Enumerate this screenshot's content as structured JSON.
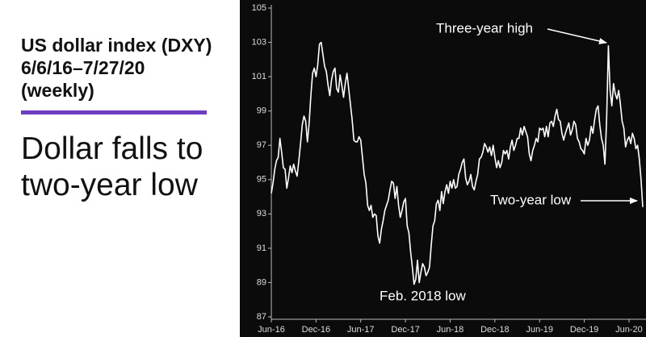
{
  "chart_data": {
    "type": "line",
    "title": "US dollar index (DXY) 6/6/16–7/27/20 (weekly)",
    "subtitle": "Dollar falls to two-year low",
    "annotations": [
      "Three-year high",
      "Two-year low",
      "Feb. 2018 low"
    ],
    "color": "#ffffff",
    "xlim": [
      0,
      216
    ],
    "xticks": [
      {
        "value": 0,
        "label": "Jun-16"
      },
      {
        "value": 26,
        "label": "Dec-16"
      },
      {
        "value": 52,
        "label": "Jun-17"
      },
      {
        "value": 78,
        "label": "Dec-17"
      },
      {
        "value": 104,
        "label": "Jun-18"
      },
      {
        "value": 130,
        "label": "Dec-18"
      },
      {
        "value": 156,
        "label": "Jun-19"
      },
      {
        "value": 182,
        "label": "Dec-19"
      },
      {
        "value": 208,
        "label": "Jun-20"
      }
    ],
    "ylim": [
      87,
      105
    ],
    "yticks": [
      87,
      89,
      91,
      93,
      95,
      97,
      99,
      101,
      103,
      105
    ],
    "values": [
      94.2,
      94.8,
      95.6,
      96.1,
      96.3,
      97.4,
      96.6,
      95.7,
      95.6,
      94.5,
      95.1,
      95.8,
      95.4,
      95.9,
      95.5,
      95.2,
      96.1,
      97.1,
      98.2,
      98.7,
      98.4,
      97.2,
      98.3,
      99.9,
      101.2,
      101.5,
      101.0,
      101.7,
      102.9,
      103.0,
      102.3,
      101.6,
      101.3,
      100.5,
      99.9,
      100.8,
      101.3,
      101.5,
      100.3,
      100.1,
      101.1,
      100.5,
      99.8,
      100.6,
      101.2,
      100.3,
      99.4,
      98.5,
      97.3,
      97.2,
      97.2,
      97.5,
      97.3,
      96.3,
      95.3,
      94.8,
      93.5,
      93.2,
      93.5,
      92.8,
      93.0,
      92.9,
      91.7,
      91.3,
      92.1,
      92.6,
      93.2,
      93.5,
      93.8,
      94.4,
      94.9,
      94.8,
      93.9,
      94.6,
      93.5,
      92.8,
      93.2,
      93.7,
      93.9,
      92.3,
      91.9,
      90.8,
      89.9,
      88.9,
      89.2,
      90.3,
      89.0,
      89.6,
      90.1,
      89.9,
      89.4,
      89.6,
      89.9,
      91.2,
      92.3,
      92.6,
      93.6,
      93.8,
      93.2,
      94.3,
      93.6,
      94.3,
      94.7,
      94.2,
      94.9,
      94.5,
      95.0,
      94.5,
      94.6,
      95.3,
      95.6,
      96.0,
      96.2,
      95.1,
      94.7,
      94.9,
      95.3,
      94.6,
      94.4,
      94.9,
      95.3,
      96.2,
      96.3,
      96.6,
      97.1,
      96.9,
      96.6,
      96.9,
      96.4,
      97.0,
      96.3,
      95.7,
      96.1,
      95.7,
      96.0,
      96.7,
      96.5,
      96.7,
      96.2,
      96.9,
      97.3,
      96.7,
      97.0,
      97.4,
      97.4,
      98.0,
      97.6,
      98.1,
      97.8,
      97.5,
      96.5,
      96.1,
      96.7,
      97.0,
      97.4,
      97.2,
      98.0,
      97.9,
      98.0,
      97.5,
      98.1,
      97.5,
      98.3,
      98.4,
      98.1,
      98.7,
      99.1,
      98.5,
      98.4,
      97.7,
      97.3,
      97.7,
      98.0,
      98.3,
      97.6,
      97.9,
      98.4,
      98.2,
      97.4,
      97.2,
      96.8,
      96.7,
      96.5,
      97.4,
      97.0,
      97.3,
      98.1,
      97.7,
      98.5,
      99.1,
      99.3,
      98.2,
      97.4,
      97.0,
      95.9,
      98.6,
      102.8,
      100.2,
      99.3,
      100.6,
      100.0,
      99.7,
      100.2,
      99.4,
      98.4,
      98.0,
      96.9,
      97.3,
      97.5,
      97.1,
      97.7,
      97.4,
      96.8,
      97.0,
      96.2,
      95.0,
      93.4
    ]
  }
}
